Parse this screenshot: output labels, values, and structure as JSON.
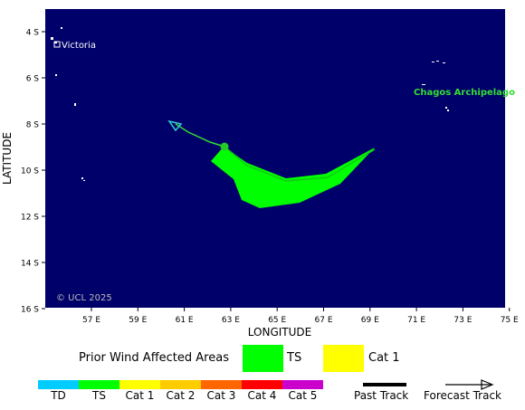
{
  "map": {
    "y_axis_label": "LATITUDE",
    "x_axis_label": "LONGITUDE",
    "lat_ticks": [
      "4 S",
      "6 S",
      "8 S",
      "10 S",
      "12 S",
      "14 S",
      "16 S"
    ],
    "lon_ticks": [
      "57 E",
      "59 E",
      "61 E",
      "63 E",
      "65 E",
      "67 E",
      "69 E",
      "71 E",
      "73 E",
      "75 E"
    ],
    "places": {
      "victoria": "Victoria",
      "chagos": "Chagos Archipelago"
    },
    "copyright": "© UCL 2025",
    "colors": {
      "ocean": "#00006a",
      "land": "#ffffff",
      "track": "#33dd33",
      "ts_area": "#00ff00",
      "place_label": "#33dd33"
    }
  },
  "legend": {
    "prior_wind_title": "Prior Wind Affected Areas",
    "areas": [
      {
        "label": "TS",
        "color": "#00ff00"
      },
      {
        "label": "Cat 1",
        "color": "#ffff00"
      }
    ],
    "intensity_scale": [
      {
        "label": "TD",
        "color": "#00ccff"
      },
      {
        "label": "TS",
        "color": "#00ff00"
      },
      {
        "label": "Cat 1",
        "color": "#ffff00"
      },
      {
        "label": "Cat 2",
        "color": "#ffcc00"
      },
      {
        "label": "Cat 3",
        "color": "#ff6600"
      },
      {
        "label": "Cat 4",
        "color": "#ff0000"
      },
      {
        "label": "Cat 5",
        "color": "#cc00cc"
      }
    ],
    "past_track": "Past Track",
    "forecast_track": "Forecast Track"
  }
}
